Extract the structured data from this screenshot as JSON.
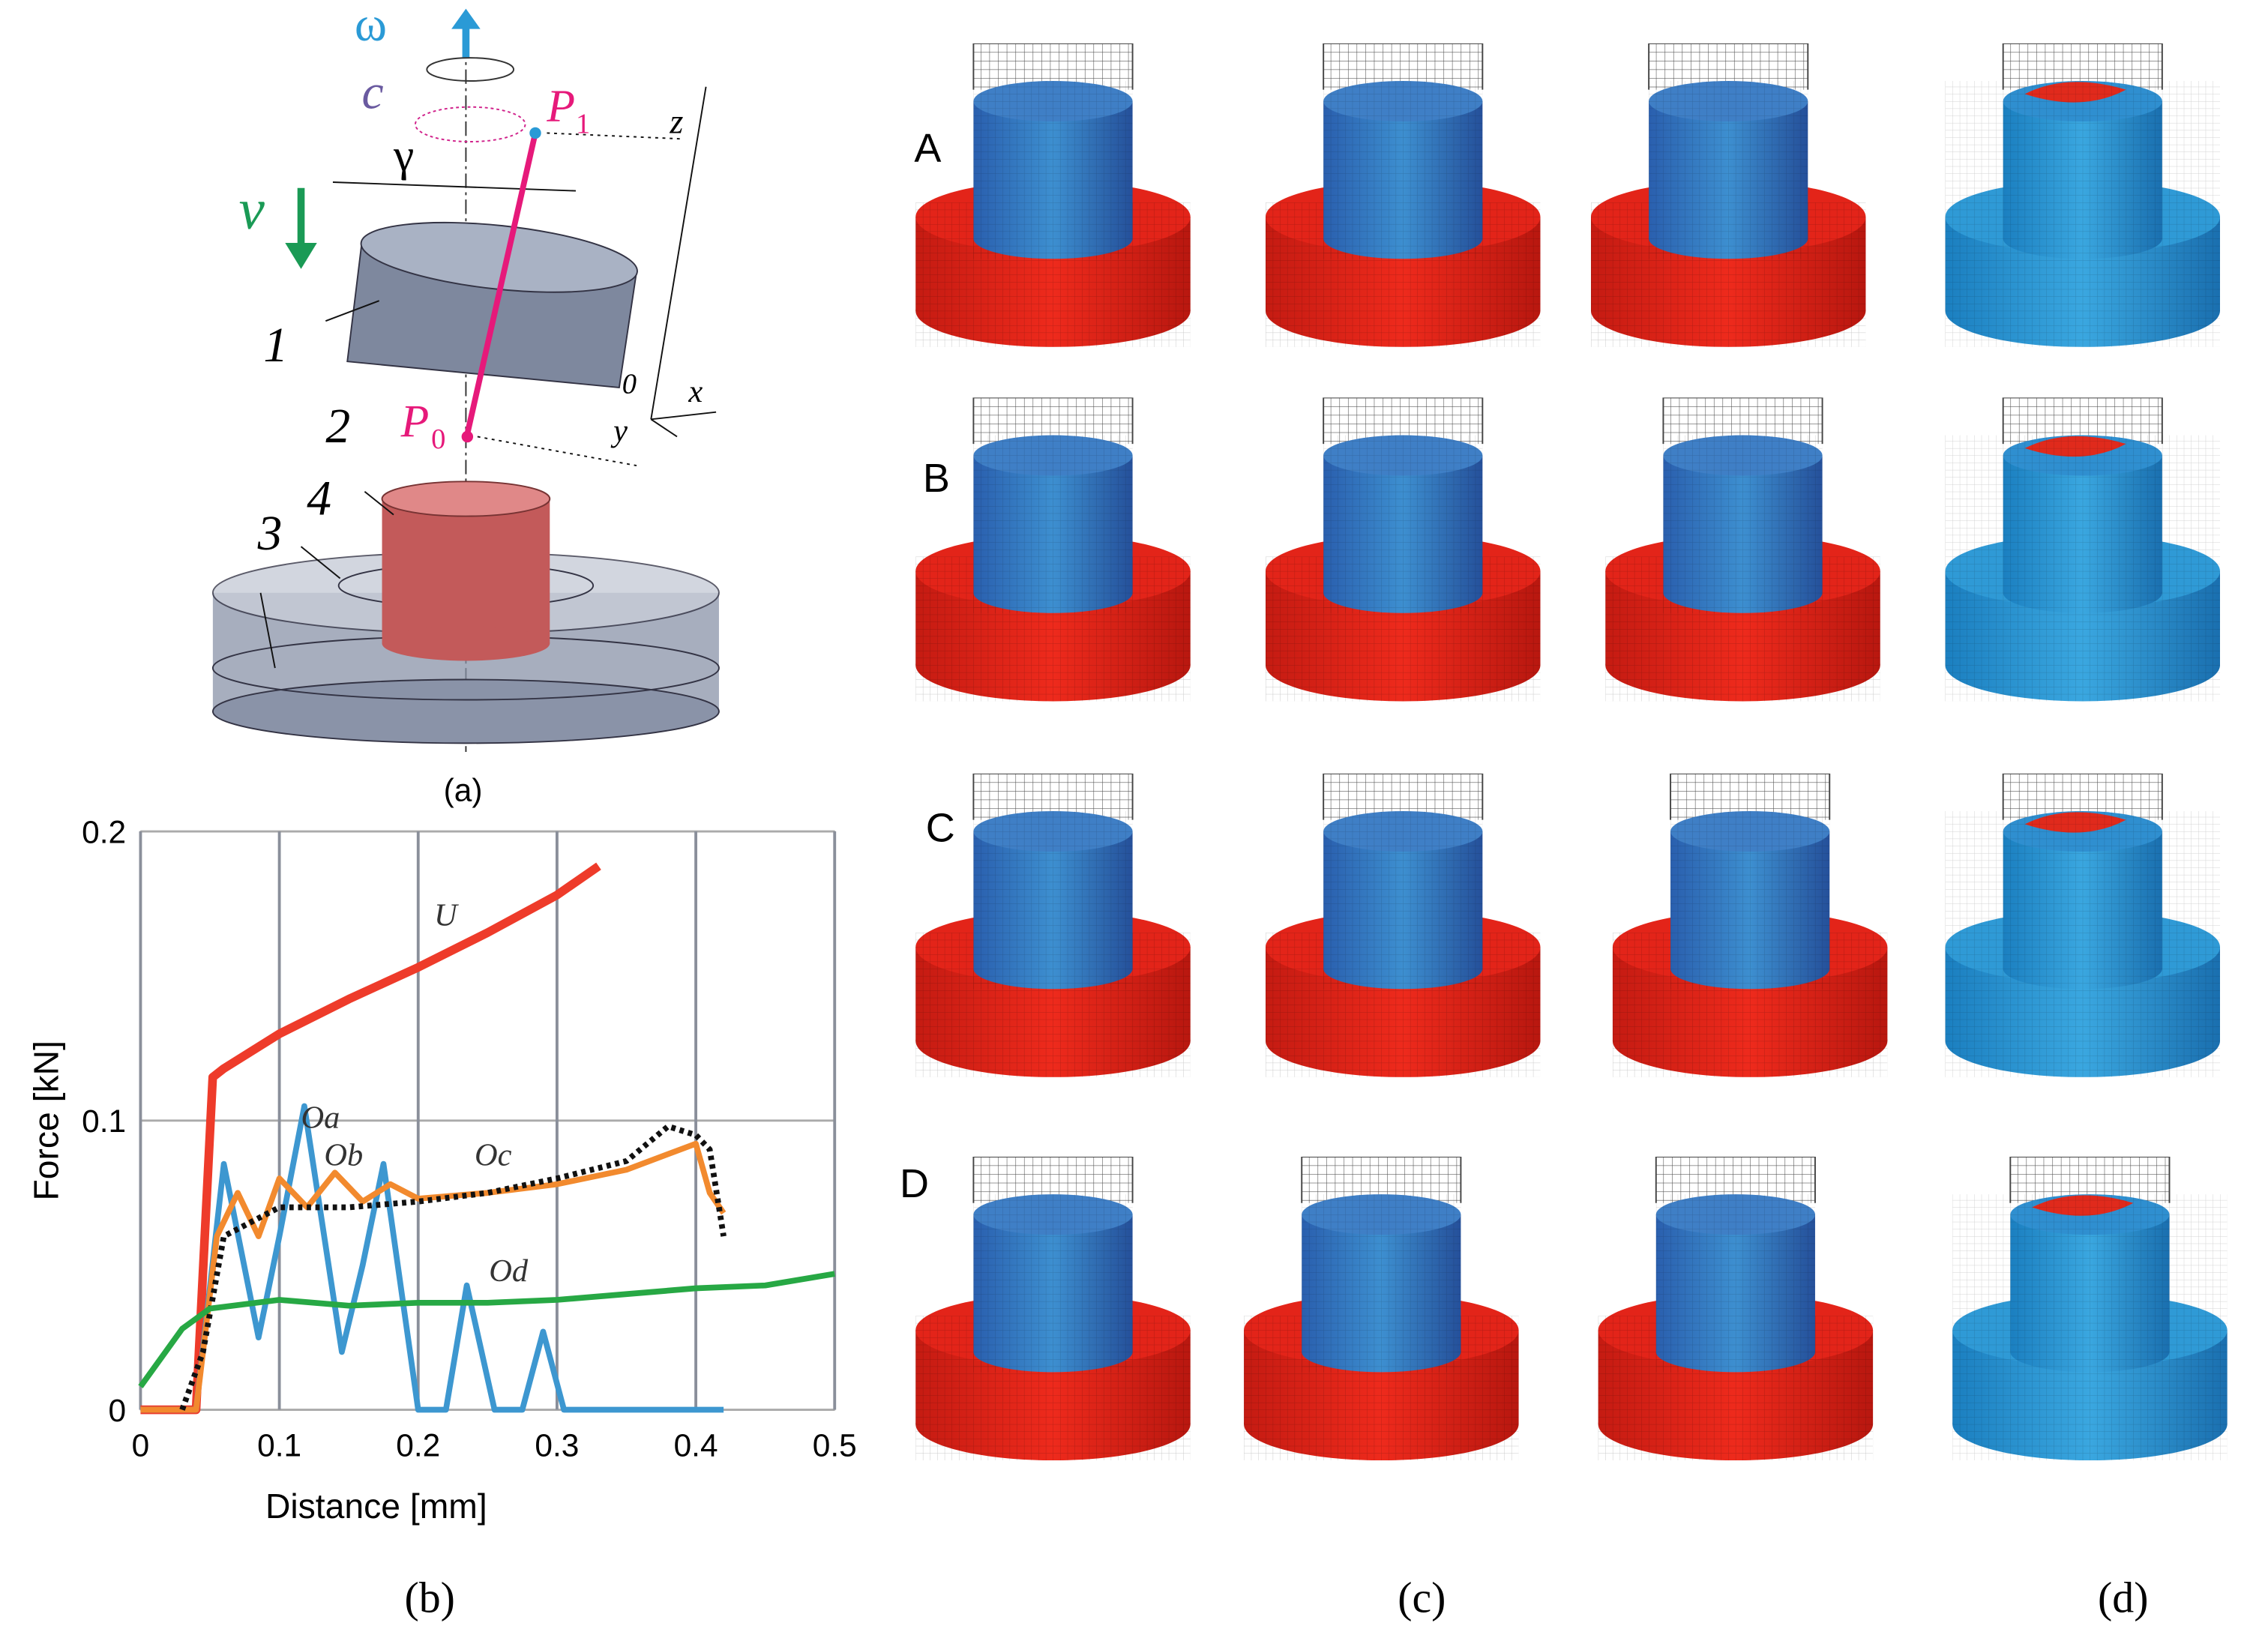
{
  "chart_data": {
    "type": "line",
    "xlabel": "Distance [mm]",
    "ylabel": "Force [kN]",
    "xlim": [
      0,
      0.5
    ],
    "ylim": [
      0,
      0.2
    ],
    "xticks": [
      0,
      0.1,
      0.2,
      0.3,
      0.4,
      0.5
    ],
    "yticks": [
      0,
      0.1,
      0.2
    ],
    "grid": true,
    "series": [
      {
        "name": "U",
        "color": "#ee3b2a",
        "x": [
          0,
          0.04,
          0.052,
          0.06,
          0.1,
          0.15,
          0.2,
          0.25,
          0.3,
          0.33
        ],
        "values": [
          0,
          0,
          0.115,
          0.118,
          0.13,
          0.142,
          0.153,
          0.165,
          0.178,
          0.188
        ]
      },
      {
        "name": "Oa",
        "color": "#3d97d0",
        "x": [
          0,
          0.04,
          0.06,
          0.085,
          0.1,
          0.118,
          0.145,
          0.16,
          0.175,
          0.2,
          0.22,
          0.235,
          0.255,
          0.275,
          0.29,
          0.305,
          0.42
        ],
        "values": [
          0,
          0,
          0.085,
          0.025,
          0.06,
          0.105,
          0.02,
          0.05,
          0.085,
          0,
          0,
          0.043,
          0,
          0,
          0.027,
          0,
          0
        ]
      },
      {
        "name": "Ob",
        "color": "#f28a2e",
        "x": [
          0,
          0.04,
          0.055,
          0.07,
          0.085,
          0.1,
          0.12,
          0.14,
          0.16,
          0.18,
          0.2,
          0.25,
          0.3,
          0.35,
          0.4,
          0.41,
          0.42
        ],
        "values": [
          0,
          0,
          0.06,
          0.075,
          0.06,
          0.08,
          0.07,
          0.082,
          0.072,
          0.078,
          0.073,
          0.075,
          0.078,
          0.083,
          0.092,
          0.075,
          0.068
        ]
      },
      {
        "name": "Oc",
        "color": "#111111",
        "x": [
          0.03,
          0.045,
          0.06,
          0.08,
          0.1,
          0.15,
          0.2,
          0.25,
          0.3,
          0.35,
          0.38,
          0.4,
          0.41,
          0.42
        ],
        "values": [
          0,
          0.02,
          0.06,
          0.065,
          0.07,
          0.07,
          0.072,
          0.075,
          0.08,
          0.086,
          0.098,
          0.095,
          0.09,
          0.06
        ]
      },
      {
        "name": "Od",
        "color": "#27a844",
        "x": [
          0,
          0.03,
          0.05,
          0.1,
          0.15,
          0.2,
          0.25,
          0.3,
          0.35,
          0.4,
          0.45,
          0.5
        ],
        "values": [
          0.008,
          0.028,
          0.035,
          0.038,
          0.036,
          0.037,
          0.037,
          0.038,
          0.04,
          0.042,
          0.043,
          0.047
        ]
      }
    ]
  },
  "diagram": {
    "labels": [
      "ω",
      "c",
      "P",
      "1",
      "γ",
      "z",
      "v",
      "1",
      "0",
      "x",
      "y",
      "2",
      "P",
      "0",
      "3",
      "4"
    ]
  },
  "rows": [
    "A",
    "B",
    "C",
    "D"
  ],
  "panels": [
    "(a)",
    "(b)",
    "(c)",
    "(d)"
  ]
}
